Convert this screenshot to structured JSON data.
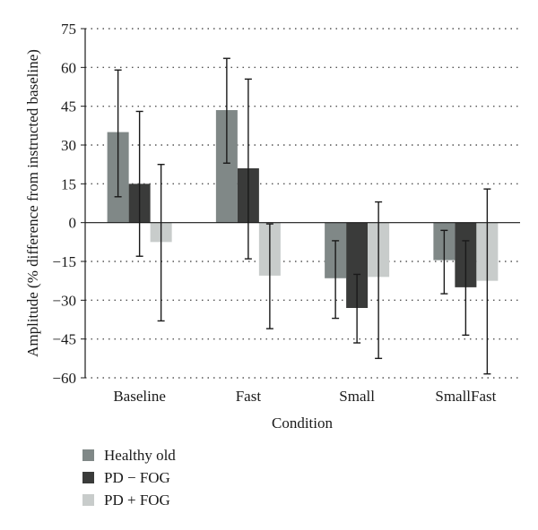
{
  "chart_data": {
    "type": "bar",
    "title": "",
    "xlabel": "Condition",
    "ylabel": "Amplitude (% difference from instructed baseline)",
    "ylim": [
      -60,
      75
    ],
    "yticks": [
      75,
      60,
      45,
      30,
      15,
      0,
      -15,
      -30,
      -45,
      -60
    ],
    "ytick_labels": [
      "75",
      "60",
      "45",
      "30",
      "15",
      "0",
      "−15",
      "−30",
      "−45",
      "−60"
    ],
    "grid": "horizontal dotted",
    "legend_position": "bottom-left",
    "categories": [
      "Baseline",
      "Fast",
      "Small",
      "SmallFast"
    ],
    "series": [
      {
        "name": "Healthy old",
        "color": "#808887",
        "values": [
          35,
          43.5,
          -21.5,
          -14.5
        ],
        "error_low": [
          10,
          23,
          -37,
          -27.5
        ],
        "error_high": [
          59,
          63.5,
          -7,
          -3
        ]
      },
      {
        "name": "PD − FOG",
        "color": "#3a3b3a",
        "values": [
          15,
          21,
          -33,
          -25
        ],
        "error_low": [
          -13,
          -14,
          -46.5,
          -43.5
        ],
        "error_high": [
          43,
          55.5,
          -20,
          -7
        ]
      },
      {
        "name": "PD + FOG",
        "color": "#c8cccb",
        "values": [
          -7.5,
          -20.5,
          -21,
          -22.5
        ],
        "error_low": [
          -38,
          -41,
          -52.5,
          -58.5
        ],
        "error_high": [
          22.5,
          -0.5,
          8,
          13
        ]
      }
    ]
  }
}
